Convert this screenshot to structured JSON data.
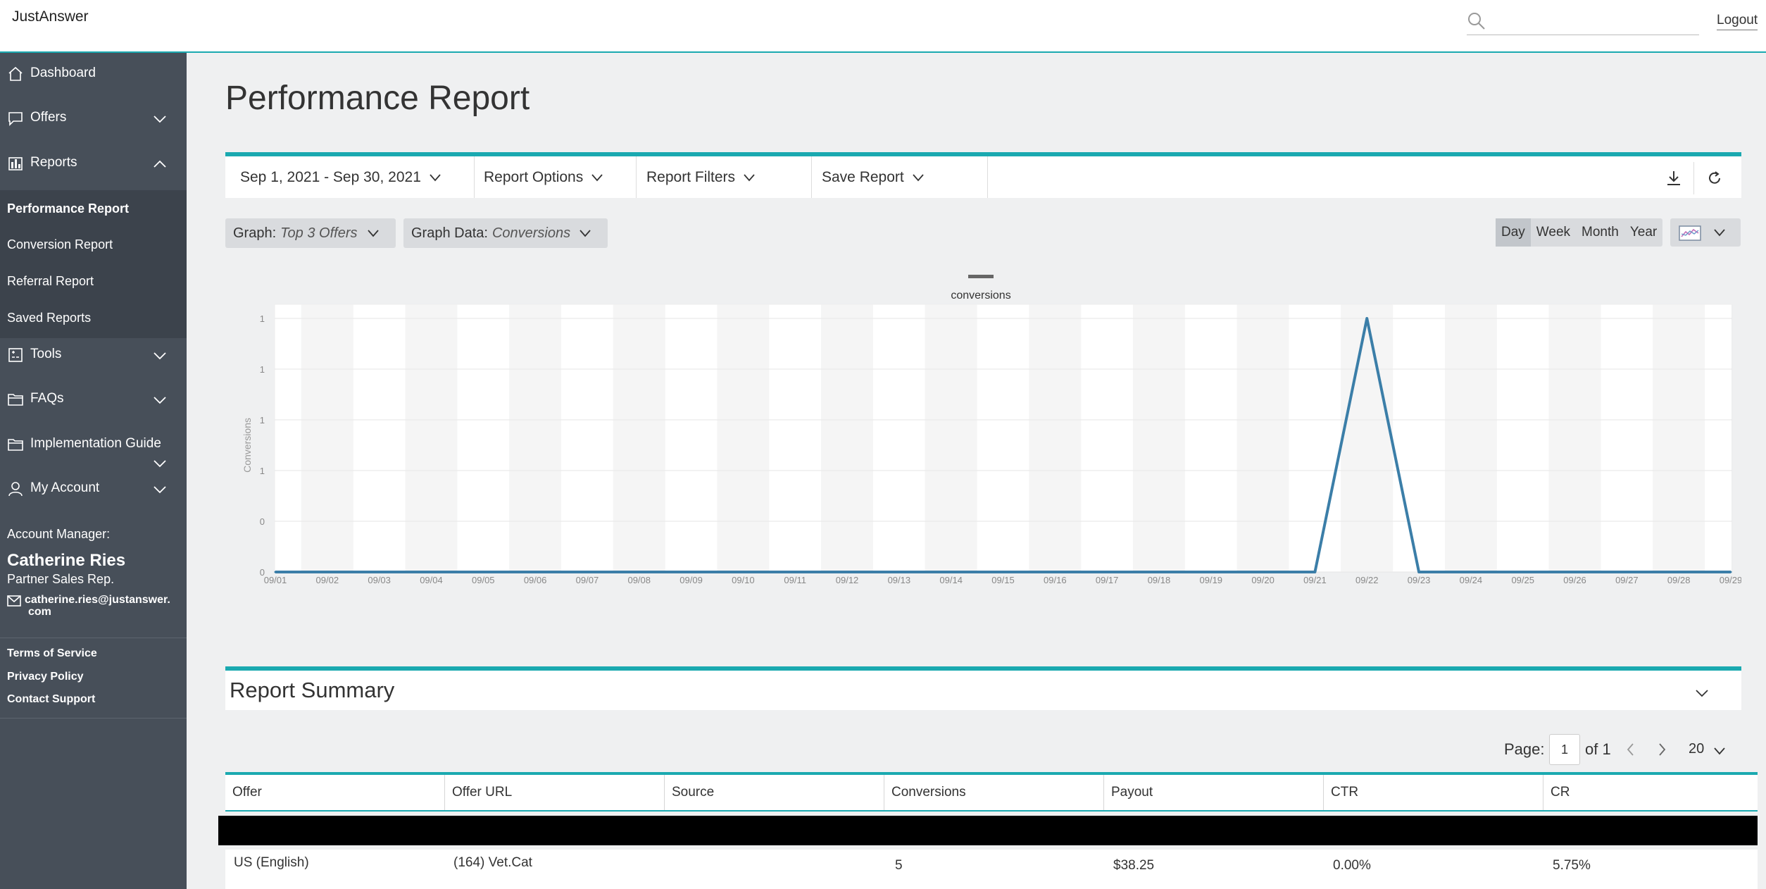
{
  "header": {
    "brand": "JustAnswer",
    "search_placeholder": "",
    "logout_label": "Logout"
  },
  "sidebar": {
    "items": [
      {
        "label": "Dashboard",
        "icon": "home-icon"
      },
      {
        "label": "Offers",
        "icon": "chat-icon",
        "expanded": false
      },
      {
        "label": "Reports",
        "icon": "bar-chart-icon",
        "expanded": true
      },
      {
        "label": "Tools",
        "icon": "tools-icon",
        "expanded": false
      },
      {
        "label": "FAQs",
        "icon": "folder-icon",
        "expanded": false
      },
      {
        "label": "Implementation Guide",
        "icon": "folder-icon",
        "expanded": false
      },
      {
        "label": "My Account",
        "icon": "user-icon",
        "expanded": false
      }
    ],
    "report_links": [
      {
        "label": "Performance Report",
        "active": true
      },
      {
        "label": "Conversion Report",
        "active": false
      },
      {
        "label": "Referral Report",
        "active": false
      },
      {
        "label": "Saved Reports",
        "active": false
      }
    ],
    "account": {
      "label": "Account Manager:",
      "name": "Catherine Ries",
      "role": "Partner Sales Rep.",
      "email_line1": "catherine.ries@justanswer.",
      "email_line2": "com"
    },
    "footer_links": [
      "Terms of Service",
      "Privacy Policy",
      "Contact Support"
    ]
  },
  "main": {
    "title": "Performance Report",
    "toolbar": {
      "date_range": "Sep 1, 2021 - Sep 30, 2021",
      "report_options": "Report Options",
      "report_filters": "Report Filters",
      "save_report": "Save Report"
    },
    "graph_pill": {
      "label": "Graph:",
      "value": "Top 3 Offers"
    },
    "graph_data_pill": {
      "label": "Graph Data:",
      "value": "Conversions"
    },
    "periods": [
      {
        "label": "Day",
        "active": true
      },
      {
        "label": "Week",
        "active": false
      },
      {
        "label": "Month",
        "active": false
      },
      {
        "label": "Year",
        "active": false
      }
    ],
    "summary_title": "Report Summary",
    "pager": {
      "label": "Page:",
      "value": "1",
      "of": "of 1",
      "page_size": "20"
    },
    "table": {
      "columns": [
        "Offer",
        "Offer URL",
        "Source",
        "Conversions",
        "Payout",
        "CTR",
        "CR"
      ],
      "rows": [
        {
          "offer": "US (English)",
          "offer_url": "(164) Vet.Cat",
          "source": "",
          "conversions": "5",
          "payout": "$38.25",
          "ctr": "0.00%",
          "cr": "5.75%"
        }
      ]
    }
  },
  "chart_data": {
    "type": "line",
    "title": "",
    "xlabel": "",
    "ylabel": "Conversions",
    "legend": [
      "conversions"
    ],
    "legend_placement": "top-center",
    "y_tick_labels": [
      "0",
      "0",
      "1",
      "1",
      "1",
      "1"
    ],
    "categories": [
      "09/01",
      "09/02",
      "09/03",
      "09/04",
      "09/05",
      "09/06",
      "09/07",
      "09/08",
      "09/09",
      "09/10",
      "09/11",
      "09/12",
      "09/13",
      "09/14",
      "09/15",
      "09/16",
      "09/17",
      "09/18",
      "09/19",
      "09/20",
      "09/21",
      "09/22",
      "09/23",
      "09/24",
      "09/25",
      "09/26",
      "09/27",
      "09/28",
      "09/29"
    ],
    "series": [
      {
        "name": "conversions",
        "color": "#3b7ea8",
        "values": [
          0,
          0,
          0,
          0,
          0,
          0,
          0,
          0,
          0,
          0,
          0,
          0,
          0,
          0,
          0,
          0,
          0,
          0,
          0,
          0,
          0,
          1,
          0,
          0,
          0,
          0,
          0,
          0,
          0
        ]
      }
    ],
    "ylim": [
      0,
      1
    ],
    "grid": true
  }
}
